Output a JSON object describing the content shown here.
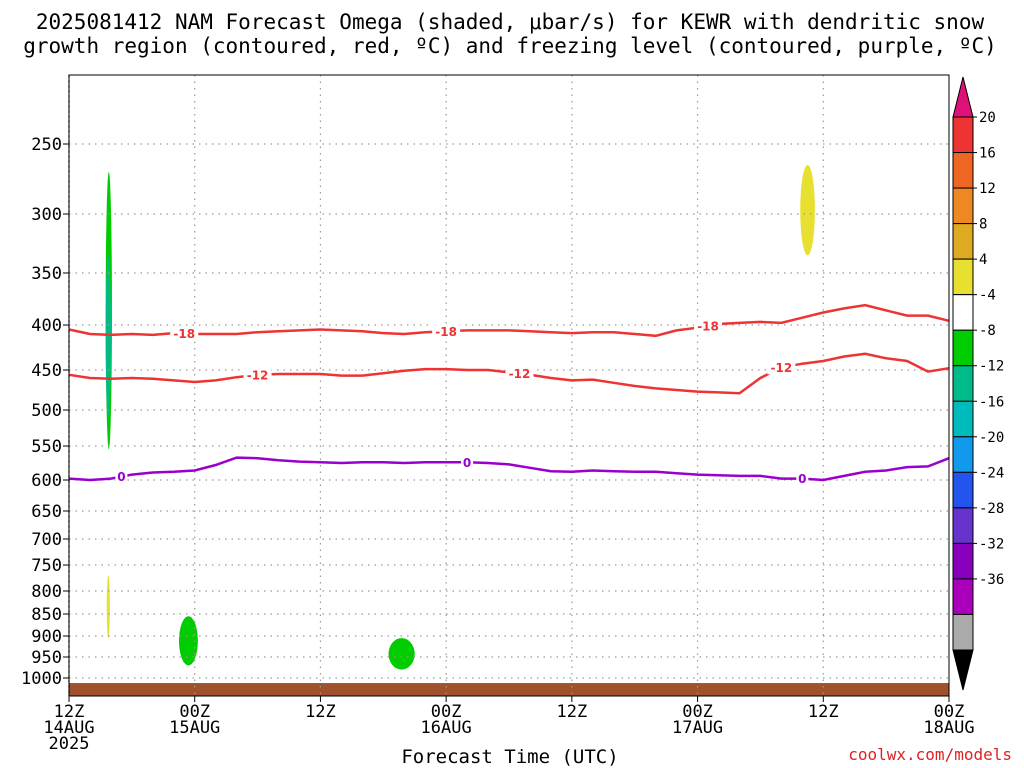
{
  "title_line1": "2025081412 NAM Forecast Omega (shaded, μbar/s) for KEWR with dendritic snow",
  "title_line2": "growth region (contoured, red, ºC) and freezing level (contoured, purple, ºC)",
  "credit": "coolwx.com/models",
  "chart_data": {
    "type": "time-height",
    "xlabel": "Forecast Time (UTC)",
    "x_start": "2025-08-14 12Z",
    "x_end": "2025-08-18 00Z",
    "x_ticks": [
      {
        "hour": 0,
        "l1": "12Z",
        "l2": "14AUG",
        "l3": "2025"
      },
      {
        "hour": 12,
        "l1": "00Z",
        "l2": "15AUG",
        "l3": ""
      },
      {
        "hour": 24,
        "l1": "12Z",
        "l2": "",
        "l3": ""
      },
      {
        "hour": 36,
        "l1": "00Z",
        "l2": "16AUG",
        "l3": ""
      },
      {
        "hour": 48,
        "l1": "12Z",
        "l2": "",
        "l3": ""
      },
      {
        "hour": 60,
        "l1": "00Z",
        "l2": "17AUG",
        "l3": ""
      },
      {
        "hour": 72,
        "l1": "12Z",
        "l2": "",
        "l3": ""
      },
      {
        "hour": 84,
        "l1": "00Z",
        "l2": "18AUG",
        "l3": ""
      }
    ],
    "y_unit": "hPa",
    "y_ticks": [
      250,
      300,
      350,
      400,
      450,
      500,
      550,
      600,
      650,
      700,
      750,
      800,
      850,
      900,
      950,
      1000
    ],
    "ylim": [
      1025,
      200
    ],
    "grid": true,
    "contours": [
      {
        "level": -18,
        "label": "-18",
        "color": "#ee3333",
        "hours": [
          0,
          2,
          4,
          6,
          8,
          10,
          12,
          14,
          16,
          18,
          20,
          22,
          24,
          26,
          28,
          30,
          32,
          34,
          36,
          38,
          40,
          42,
          44,
          46,
          48,
          50,
          52,
          54,
          56,
          58,
          60,
          62,
          64,
          66,
          68,
          70,
          72,
          74,
          76,
          78,
          80,
          82,
          84
        ],
        "pressures": [
          405,
          410,
          411,
          410,
          411,
          409,
          410,
          410,
          410,
          408,
          407,
          406,
          405,
          406,
          407,
          409,
          410,
          408,
          407,
          406,
          406,
          406,
          407,
          408,
          409,
          408,
          408,
          410,
          412,
          406,
          403,
          399,
          398,
          397,
          398,
          393,
          388,
          384,
          381,
          386,
          391,
          391,
          396
        ],
        "label_hours": [
          11,
          36,
          61
        ]
      },
      {
        "level": -12,
        "label": "-12",
        "color": "#ee3333",
        "hours": [
          0,
          2,
          4,
          6,
          8,
          10,
          12,
          14,
          16,
          18,
          20,
          22,
          24,
          26,
          28,
          30,
          32,
          34,
          36,
          38,
          40,
          42,
          44,
          46,
          48,
          50,
          52,
          54,
          56,
          58,
          60,
          62,
          64,
          66,
          68,
          70,
          72,
          74,
          76,
          78,
          80,
          82,
          84
        ],
        "pressures": [
          456,
          460,
          461,
          460,
          461,
          463,
          465,
          463,
          459,
          456,
          455,
          455,
          455,
          457,
          457,
          454,
          451,
          449,
          449,
          450,
          450,
          453,
          456,
          460,
          463,
          462,
          466,
          470,
          473,
          475,
          477,
          478,
          479,
          460,
          447,
          443,
          440,
          435,
          432,
          437,
          440,
          452,
          448
        ],
        "label_hours": [
          18,
          43,
          68
        ]
      },
      {
        "level": 0,
        "label": "0",
        "color": "#9900cc",
        "hours": [
          0,
          2,
          4,
          6,
          8,
          10,
          12,
          14,
          16,
          18,
          20,
          22,
          24,
          26,
          28,
          30,
          32,
          34,
          36,
          38,
          40,
          42,
          44,
          46,
          48,
          50,
          52,
          54,
          56,
          58,
          60,
          62,
          64,
          66,
          68,
          70,
          72,
          74,
          76,
          78,
          80,
          82,
          84
        ],
        "pressures": [
          598,
          600,
          598,
          592,
          589,
          588,
          586,
          578,
          567,
          568,
          571,
          573,
          574,
          575,
          574,
          574,
          575,
          574,
          574,
          574,
          575,
          577,
          582,
          587,
          588,
          586,
          587,
          588,
          588,
          590,
          592,
          593,
          594,
          594,
          598,
          598,
          600,
          594,
          588,
          586,
          581,
          580,
          568
        ],
        "label_hours": [
          5,
          38,
          70
        ]
      }
    ],
    "omega_shaded": [
      {
        "value": -5,
        "color": "#00cc00",
        "hours": [
          3.5,
          4.1
        ],
        "pressures": [
          270,
          555
        ]
      },
      {
        "value": -9,
        "color": "#00bb88",
        "hours": [
          3.5,
          4.0
        ],
        "pressures": [
          335,
          510
        ]
      },
      {
        "value": 5,
        "color": "#e8e030",
        "hours": [
          3.6,
          3.9
        ],
        "pressures": [
          770,
          905
        ]
      },
      {
        "value": -5,
        "color": "#00cc00",
        "hours": [
          10.5,
          12.3
        ],
        "pressures": [
          855,
          970
        ]
      },
      {
        "value": -5,
        "color": "#00cc00",
        "hours": [
          30.5,
          33.0
        ],
        "pressures": [
          905,
          980
        ]
      },
      {
        "value": 5,
        "color": "#e8e030",
        "hours": [
          69.8,
          71.2
        ],
        "pressures": [
          265,
          335
        ]
      }
    ],
    "ground": {
      "color": "#a0522d",
      "pressure_top": 1007
    },
    "colorbar": {
      "labels": [
        "20",
        "16",
        "12",
        "8",
        "4",
        "-4",
        "-8",
        "-12",
        "-16",
        "-20",
        "-24",
        "-28",
        "-32",
        "-36"
      ],
      "colors": [
        "#dd1177",
        "#ee3333",
        "#ee6622",
        "#ee8822",
        "#ddaa22",
        "#e8e030",
        "#ffffff",
        "#00cc00",
        "#00bb88",
        "#00bbbb",
        "#1199ee",
        "#2255ee",
        "#6633cc",
        "#8800bb",
        "#aa00bb",
        "#aaaaaa",
        "#000000"
      ]
    }
  }
}
